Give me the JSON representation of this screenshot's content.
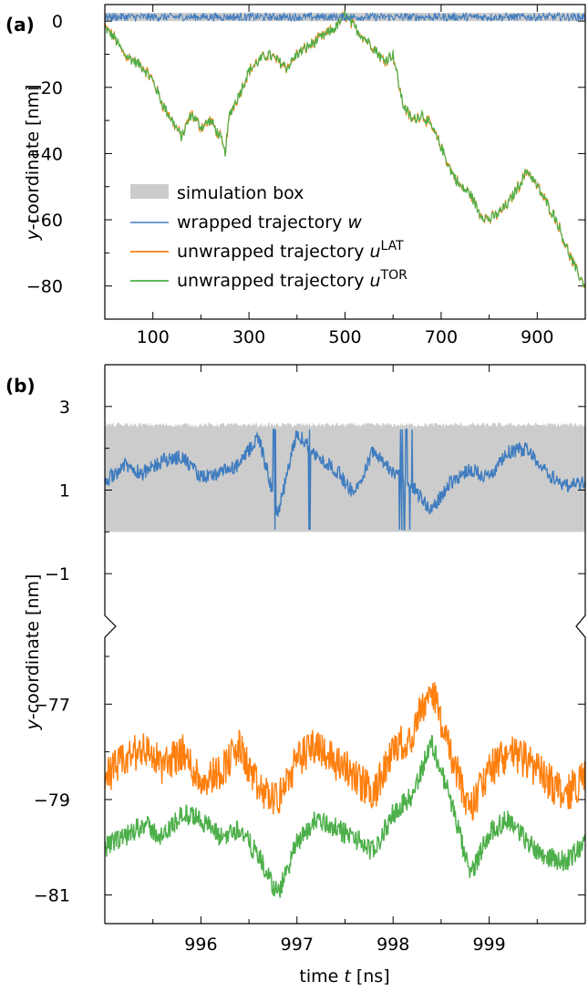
{
  "chart_data": [
    {
      "panel": "(a)",
      "type": "line",
      "ylabel_italic": "y",
      "ylabel_rest": "-coordinate [nm]",
      "xlim": [
        0,
        1000
      ],
      "ylim": [
        -90,
        5
      ],
      "xticks": [
        100,
        300,
        500,
        700,
        900
      ],
      "yticks": [
        0,
        -20,
        -40,
        -60,
        -80
      ],
      "ytick_labels": [
        "0",
        "−20",
        "−40",
        "−60",
        "−80"
      ],
      "legend_placement": "lower-left",
      "legend": [
        {
          "key": "box",
          "text": "simulation box",
          "sup": ""
        },
        {
          "key": "w",
          "text": "wrapped trajectory ",
          "italic": "w",
          "sup": ""
        },
        {
          "key": "lat",
          "text": "unwrapped trajectory ",
          "italic": "u",
          "sup": "LAT"
        },
        {
          "key": "tor",
          "text": "unwrapped trajectory ",
          "italic": "u",
          "sup": "TOR"
        }
      ],
      "box_range": [
        0,
        2.5
      ],
      "series": [
        {
          "key": "w",
          "note": "wrapped, oscillates within box",
          "x": [
            0,
            1000
          ],
          "y": [
            1.25,
            1.25
          ]
        },
        {
          "key": "tor",
          "x": [
            0,
            20,
            40,
            60,
            80,
            100,
            120,
            140,
            160,
            180,
            200,
            220,
            240,
            250,
            260,
            280,
            300,
            320,
            340,
            360,
            380,
            400,
            420,
            440,
            460,
            480,
            500,
            520,
            540,
            560,
            580,
            600,
            620,
            640,
            660,
            680,
            700,
            720,
            740,
            760,
            780,
            800,
            820,
            840,
            860,
            880,
            900,
            920,
            940,
            960,
            980,
            1000
          ],
          "y": [
            -2,
            -5,
            -10,
            -12,
            -14,
            -18,
            -25,
            -30,
            -35,
            -28,
            -32,
            -30,
            -35,
            -40,
            -28,
            -22,
            -15,
            -12,
            -10,
            -12,
            -14,
            -10,
            -8,
            -6,
            -4,
            -2,
            2,
            -2,
            -5,
            -8,
            -12,
            -10,
            -25,
            -30,
            -28,
            -32,
            -38,
            -45,
            -50,
            -52,
            -58,
            -60,
            -58,
            -55,
            -50,
            -45,
            -50,
            -55,
            -60,
            -68,
            -75,
            -80
          ]
        },
        {
          "key": "lat",
          "note": "nearly identical to TOR with small offsets",
          "x": [
            0,
            1000
          ],
          "y": [
            -2,
            -79
          ]
        }
      ]
    },
    {
      "panel": "(b)",
      "type": "line",
      "xlabel_prefix": "time ",
      "xlabel_italic": "t",
      "xlabel_suffix": " [ns]",
      "ylabel_italic": "y",
      "ylabel_rest": "-coordinate [nm]",
      "xlim": [
        995,
        1000
      ],
      "xticks": [
        996,
        997,
        998,
        999
      ],
      "upper_ylim": [
        -2,
        4
      ],
      "upper_yticks": [
        3,
        1,
        -1
      ],
      "upper_ytick_labels": [
        "3",
        "1",
        "−1"
      ],
      "lower_ylim": [
        -81.6,
        -75.6
      ],
      "lower_yticks": [
        -77,
        -79,
        -81
      ],
      "lower_ytick_labels": [
        "−77",
        "−79",
        "−81"
      ],
      "box_range": [
        0,
        2.5
      ],
      "series": [
        {
          "key": "w",
          "x": [
            995.0,
            995.2,
            995.4,
            995.6,
            995.8,
            996.0,
            996.2,
            996.4,
            996.6,
            996.8,
            997.0,
            997.2,
            997.4,
            997.6,
            997.8,
            998.0,
            998.2,
            998.4,
            998.6,
            998.8,
            999.0,
            999.2,
            999.4,
            999.6,
            999.8,
            1000.0
          ],
          "y": [
            1.2,
            1.6,
            1.4,
            1.7,
            1.8,
            1.3,
            1.4,
            1.6,
            2.3,
            0.4,
            2.4,
            1.8,
            1.5,
            0.9,
            2.0,
            1.4,
            1.1,
            0.5,
            1.2,
            1.5,
            1.3,
            1.9,
            2.0,
            1.4,
            1.1,
            1.2
          ]
        },
        {
          "key": "lat",
          "x": [
            995.0,
            995.2,
            995.4,
            995.6,
            995.8,
            996.0,
            996.2,
            996.4,
            996.6,
            996.8,
            997.0,
            997.2,
            997.4,
            997.6,
            997.8,
            998.0,
            998.2,
            998.4,
            998.6,
            998.8,
            999.0,
            999.2,
            999.4,
            999.6,
            999.8,
            1000.0
          ],
          "y": [
            -78.5,
            -78.2,
            -77.9,
            -78.3,
            -78.0,
            -78.6,
            -78.4,
            -77.9,
            -78.8,
            -79.0,
            -78.2,
            -77.8,
            -78.2,
            -78.5,
            -78.9,
            -78.0,
            -77.6,
            -76.6,
            -78.1,
            -79.2,
            -78.4,
            -78.0,
            -78.2,
            -78.6,
            -78.9,
            -78.5
          ]
        },
        {
          "key": "tor",
          "x": [
            995.0,
            995.2,
            995.4,
            995.6,
            995.8,
            996.0,
            996.2,
            996.4,
            996.6,
            996.8,
            997.0,
            997.2,
            997.4,
            997.6,
            997.8,
            998.0,
            998.2,
            998.4,
            998.6,
            998.8,
            999.0,
            999.2,
            999.4,
            999.6,
            999.8,
            1000.0
          ],
          "y": [
            -80.0,
            -79.8,
            -79.5,
            -79.8,
            -79.3,
            -79.4,
            -79.8,
            -79.6,
            -80.2,
            -81.0,
            -79.9,
            -79.4,
            -79.6,
            -79.8,
            -80.1,
            -79.3,
            -78.9,
            -77.8,
            -79.0,
            -80.6,
            -79.7,
            -79.4,
            -79.9,
            -80.2,
            -80.3,
            -79.9
          ]
        }
      ]
    }
  ],
  "colors": {
    "w": "#3f7cbf",
    "lat": "#ff7f0e",
    "tor": "#4daf4a",
    "box": "#cccccc"
  }
}
